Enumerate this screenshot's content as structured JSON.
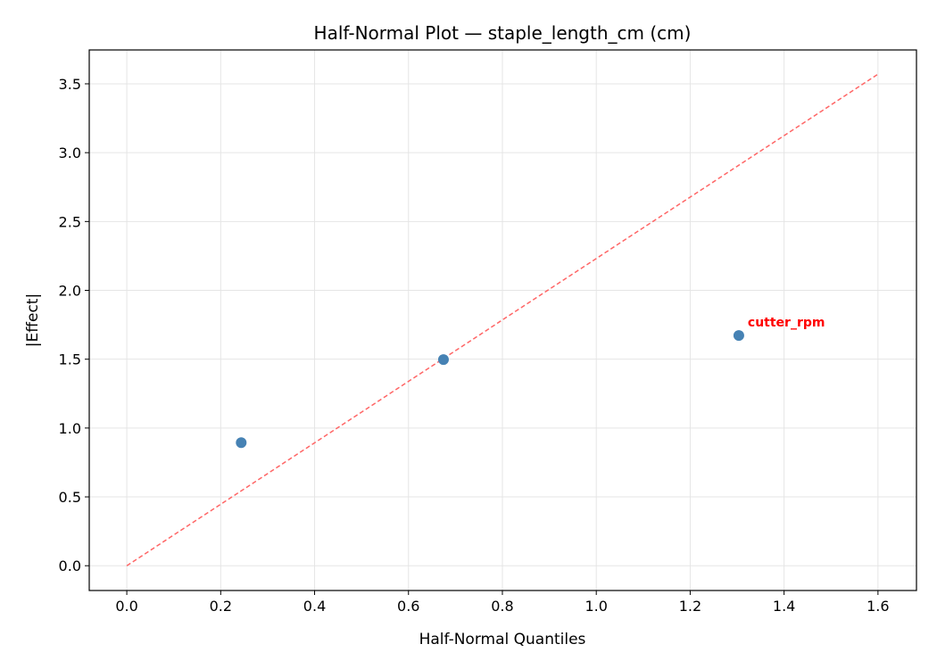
{
  "chart_data": {
    "type": "scatter",
    "title": "Half-Normal Plot — staple_length_cm (cm)",
    "xlabel": "Half-Normal Quantiles",
    "ylabel": "|Effect|",
    "xlim": [
      -0.08,
      1.682
    ],
    "ylim": [
      -0.18,
      3.746
    ],
    "xticks": [
      0.0,
      0.2,
      0.4,
      0.6,
      0.8,
      1.0,
      1.2,
      1.4,
      1.6
    ],
    "xtick_labels": [
      "0.0",
      "0.2",
      "0.4",
      "0.6",
      "0.8",
      "1.0",
      "1.2",
      "1.4",
      "1.6"
    ],
    "yticks": [
      0.0,
      0.5,
      1.0,
      1.5,
      2.0,
      2.5,
      3.0,
      3.5
    ],
    "ytick_labels": [
      "0.0",
      "0.5",
      "1.0",
      "1.5",
      "2.0",
      "2.5",
      "3.0",
      "3.5"
    ],
    "grid": true,
    "points": [
      {
        "x": 0.2437,
        "y": 0.894,
        "label": ""
      },
      {
        "x": 0.6745,
        "y": 1.497,
        "label": ""
      },
      {
        "x": 1.3036,
        "y": 1.672,
        "label": "cutter_rpm"
      }
    ],
    "reference_line": {
      "x": [
        0.0,
        1.6
      ],
      "y": [
        0.0,
        3.57
      ],
      "style": "dashed"
    },
    "colors": {
      "points": "#4682b4",
      "reference_line": "#ff6666",
      "annotation": "#ff0000",
      "grid": "#e5e5e5"
    }
  }
}
